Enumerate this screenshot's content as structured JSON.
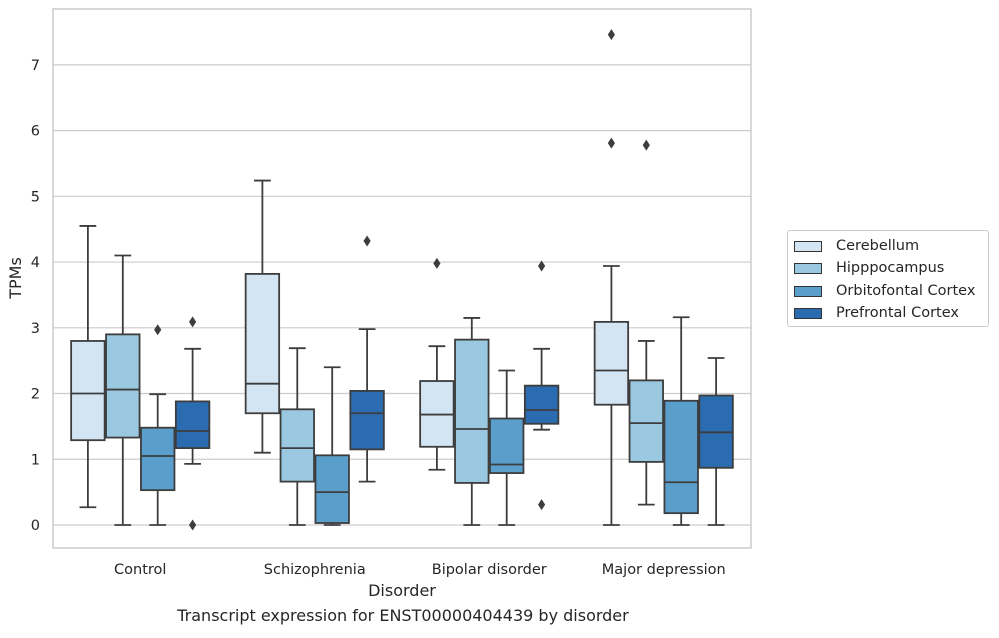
{
  "chart_data": {
    "type": "box",
    "title": "",
    "caption": "Transcript expression for ENST00000404439 by disorder",
    "xlabel": "Disorder",
    "ylabel": "TPMs",
    "ylim": [
      -0.35,
      7.85
    ],
    "yticks": [
      "0",
      "1",
      "2",
      "3",
      "4",
      "5",
      "6",
      "7"
    ],
    "grid": "horizontal",
    "legend_position": "right",
    "categories": [
      "Control",
      "Schizophrenia",
      "Bipolar disorder",
      "Major depression"
    ],
    "series": [
      {
        "name": "Cerebellum",
        "color": "#d3e4f3",
        "boxes": [
          {
            "whislo": 0.27,
            "q1": 1.29,
            "med": 2.0,
            "q3": 2.8,
            "whishi": 4.55,
            "fliers": []
          },
          {
            "whislo": 1.1,
            "q1": 1.7,
            "med": 2.15,
            "q3": 3.82,
            "whishi": 5.24,
            "fliers": []
          },
          {
            "whislo": 0.84,
            "q1": 1.19,
            "med": 1.68,
            "q3": 2.19,
            "whishi": 2.72,
            "fliers": [
              3.98
            ]
          },
          {
            "whislo": 0.0,
            "q1": 1.83,
            "med": 2.35,
            "q3": 3.09,
            "whishi": 3.94,
            "fliers": [
              5.81,
              7.46
            ]
          }
        ]
      },
      {
        "name": "Hipppocampus",
        "color": "#9ac8e0",
        "boxes": [
          {
            "whislo": 0.0,
            "q1": 1.33,
            "med": 2.06,
            "q3": 2.9,
            "whishi": 4.1,
            "fliers": []
          },
          {
            "whislo": 0.0,
            "q1": 0.66,
            "med": 1.17,
            "q3": 1.76,
            "whishi": 2.69,
            "fliers": []
          },
          {
            "whislo": 0.0,
            "q1": 0.64,
            "med": 1.46,
            "q3": 2.82,
            "whishi": 3.15,
            "fliers": []
          },
          {
            "whislo": 0.31,
            "q1": 0.96,
            "med": 1.55,
            "q3": 2.2,
            "whishi": 2.8,
            "fliers": [
              5.78
            ]
          }
        ]
      },
      {
        "name": "Orbitofontal Cortex",
        "color": "#5a9ecb",
        "boxes": [
          {
            "whislo": 0.0,
            "q1": 0.53,
            "med": 1.05,
            "q3": 1.48,
            "whishi": 1.99,
            "fliers": [
              2.97
            ]
          },
          {
            "whislo": 0.0,
            "q1": 0.03,
            "med": 0.5,
            "q3": 1.06,
            "whishi": 2.4,
            "fliers": []
          },
          {
            "whislo": 0.0,
            "q1": 0.79,
            "med": 0.92,
            "q3": 1.62,
            "whishi": 2.35,
            "fliers": []
          },
          {
            "whislo": 0.0,
            "q1": 0.18,
            "med": 0.65,
            "q3": 1.89,
            "whishi": 3.16,
            "fliers": []
          }
        ]
      },
      {
        "name": "Prefrontal Cortex",
        "color": "#2a6caf",
        "boxes": [
          {
            "whislo": 0.93,
            "q1": 1.17,
            "med": 1.43,
            "q3": 1.88,
            "whishi": 2.68,
            "fliers": [
              0.0,
              3.09
            ]
          },
          {
            "whislo": 0.66,
            "q1": 1.15,
            "med": 1.7,
            "q3": 2.04,
            "whishi": 2.98,
            "fliers": [
              4.32
            ]
          },
          {
            "whislo": 1.45,
            "q1": 1.54,
            "med": 1.75,
            "q3": 2.12,
            "whishi": 2.68,
            "fliers": [
              0.31,
              3.94
            ]
          },
          {
            "whislo": 0.0,
            "q1": 0.87,
            "med": 1.41,
            "q3": 1.97,
            "whishi": 2.54,
            "fliers": []
          }
        ]
      }
    ]
  }
}
